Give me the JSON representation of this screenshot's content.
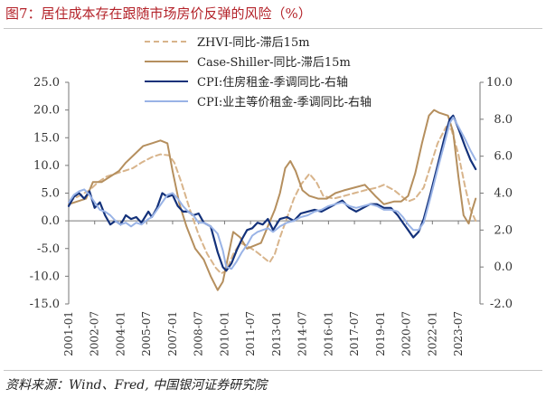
{
  "title": "图7：居住成本存在跟随市场房价反弹的风险（%）",
  "source": "资料来源：Wind、Fred, 中国银河证券研究院",
  "chart_data": {
    "type": "line",
    "x_ticks": [
      "2001-01",
      "2002-07",
      "2004-01",
      "2005-07",
      "2007-01",
      "2008-07",
      "2010-01",
      "2011-07",
      "2013-01",
      "2014-07",
      "2016-01",
      "2017-07",
      "2019-01",
      "2020-07",
      "2022-01",
      "2023-07"
    ],
    "y_left": {
      "ticks": [
        25.0,
        20.0,
        15.0,
        10.0,
        5.0,
        0.0,
        -5.0,
        -10.0,
        -15.0
      ],
      "tick_labels": [
        "25.0",
        "20.0",
        "15.0",
        "10.0",
        "5.0",
        "0.0",
        "-5.0",
        "-10.0",
        "-15.0"
      ],
      "ylim": [
        -15,
        25
      ]
    },
    "y_right": {
      "ticks": [
        10.0,
        8.0,
        6.0,
        4.0,
        2.0,
        0.0,
        -2.0
      ],
      "tick_labels": [
        "10.0",
        "8.0",
        "6.0",
        "4.0",
        "2.0",
        "0.0",
        "-2.0"
      ],
      "ylim": [
        -2,
        10
      ]
    },
    "series": [
      {
        "name": "ZHVI-同比-滞后15m",
        "axis": "left",
        "color": "#d8b48b",
        "dash": true,
        "points": [
          [
            2001.0,
            3.5
          ],
          [
            2001.6,
            4.5
          ],
          [
            2002.2,
            5.5
          ],
          [
            2002.7,
            7.0
          ],
          [
            2003.2,
            8.0
          ],
          [
            2003.7,
            8.5
          ],
          [
            2004.2,
            9.0
          ],
          [
            2004.7,
            9.5
          ],
          [
            2005.2,
            10.5
          ],
          [
            2005.8,
            11.5
          ],
          [
            2006.3,
            12.0
          ],
          [
            2006.8,
            11.8
          ],
          [
            2007.1,
            10.5
          ],
          [
            2007.5,
            7.0
          ],
          [
            2008.0,
            2.0
          ],
          [
            2008.5,
            -2.5
          ],
          [
            2009.0,
            -6.0
          ],
          [
            2009.5,
            -8.5
          ],
          [
            2009.8,
            -9.5
          ],
          [
            2010.1,
            -9.0
          ],
          [
            2010.5,
            -6.0
          ],
          [
            2010.9,
            -4.0
          ],
          [
            2011.3,
            -4.5
          ],
          [
            2011.8,
            -5.5
          ],
          [
            2012.2,
            -6.5
          ],
          [
            2012.6,
            -7.5
          ],
          [
            2012.9,
            -6.0
          ],
          [
            2013.2,
            -3.0
          ],
          [
            2013.6,
            0.5
          ],
          [
            2014.0,
            4.0
          ],
          [
            2014.4,
            6.5
          ],
          [
            2014.9,
            8.5
          ],
          [
            2015.3,
            7.0
          ],
          [
            2015.7,
            4.5
          ],
          [
            2016.3,
            4.0
          ],
          [
            2016.9,
            4.5
          ],
          [
            2017.5,
            5.0
          ],
          [
            2018.1,
            5.5
          ],
          [
            2018.8,
            6.0
          ],
          [
            2019.2,
            6.5
          ],
          [
            2019.8,
            5.5
          ],
          [
            2020.2,
            4.5
          ],
          [
            2020.6,
            3.5
          ],
          [
            2021.0,
            4.0
          ],
          [
            2021.5,
            6.0
          ],
          [
            2021.9,
            10.0
          ],
          [
            2022.3,
            14.0
          ],
          [
            2022.8,
            17.0
          ],
          [
            2023.1,
            16.5
          ],
          [
            2023.5,
            12.0
          ],
          [
            2023.9,
            6.0
          ],
          [
            2024.2,
            2.0
          ],
          [
            2024.5,
            0.0
          ]
        ]
      },
      {
        "name": "Case-Shiller-同比-滞后15m",
        "axis": "left",
        "color": "#b58f5e",
        "dash": false,
        "points": [
          [
            2001.0,
            3.0
          ],
          [
            2001.5,
            3.5
          ],
          [
            2002.0,
            4.0
          ],
          [
            2002.4,
            7.0
          ],
          [
            2002.9,
            7.0
          ],
          [
            2003.4,
            8.0
          ],
          [
            2003.9,
            9.0
          ],
          [
            2004.3,
            10.5
          ],
          [
            2004.8,
            12.0
          ],
          [
            2005.3,
            13.5
          ],
          [
            2005.8,
            14.0
          ],
          [
            2006.3,
            14.5
          ],
          [
            2006.7,
            14.0
          ],
          [
            2007.0,
            9.0
          ],
          [
            2007.4,
            3.0
          ],
          [
            2007.8,
            -1.0
          ],
          [
            2008.3,
            -5.0
          ],
          [
            2008.8,
            -7.0
          ],
          [
            2009.2,
            -10.0
          ],
          [
            2009.6,
            -12.5
          ],
          [
            2009.9,
            -11.0
          ],
          [
            2010.2,
            -6.5
          ],
          [
            2010.5,
            -2.0
          ],
          [
            2010.9,
            -3.0
          ],
          [
            2011.3,
            -5.0
          ],
          [
            2011.7,
            -4.5
          ],
          [
            2012.1,
            -4.0
          ],
          [
            2012.5,
            -1.0
          ],
          [
            2012.9,
            2.0
          ],
          [
            2013.2,
            5.0
          ],
          [
            2013.5,
            9.5
          ],
          [
            2013.8,
            10.8
          ],
          [
            2014.1,
            9.0
          ],
          [
            2014.5,
            5.5
          ],
          [
            2014.9,
            4.5
          ],
          [
            2015.4,
            4.0
          ],
          [
            2015.9,
            4.0
          ],
          [
            2016.4,
            5.0
          ],
          [
            2016.9,
            5.5
          ],
          [
            2017.5,
            6.0
          ],
          [
            2018.1,
            6.5
          ],
          [
            2018.7,
            4.5
          ],
          [
            2019.2,
            3.0
          ],
          [
            2019.8,
            3.5
          ],
          [
            2020.2,
            3.5
          ],
          [
            2020.6,
            4.5
          ],
          [
            2021.0,
            8.5
          ],
          [
            2021.4,
            14.0
          ],
          [
            2021.8,
            19.0
          ],
          [
            2022.1,
            20.0
          ],
          [
            2022.4,
            19.5
          ],
          [
            2022.9,
            19.0
          ],
          [
            2023.2,
            16.0
          ],
          [
            2023.5,
            8.0
          ],
          [
            2023.8,
            1.0
          ],
          [
            2024.1,
            -0.5
          ],
          [
            2024.3,
            2.0
          ],
          [
            2024.5,
            4.0
          ]
        ]
      },
      {
        "name": "CPI:住房租金-季调同比-右轴",
        "axis": "right",
        "color": "#13317a",
        "dash": false,
        "points": [
          [
            2001.0,
            3.3
          ],
          [
            2001.3,
            3.8
          ],
          [
            2001.6,
            4.0
          ],
          [
            2001.9,
            3.7
          ],
          [
            2002.2,
            4.1
          ],
          [
            2002.5,
            3.2
          ],
          [
            2002.8,
            3.5
          ],
          [
            2003.1,
            2.8
          ],
          [
            2003.4,
            2.3
          ],
          [
            2003.7,
            2.5
          ],
          [
            2004.0,
            2.3
          ],
          [
            2004.3,
            2.8
          ],
          [
            2004.6,
            2.6
          ],
          [
            2004.9,
            2.7
          ],
          [
            2005.2,
            2.4
          ],
          [
            2005.6,
            3.0
          ],
          [
            2005.8,
            2.7
          ],
          [
            2006.1,
            3.2
          ],
          [
            2006.4,
            4.0
          ],
          [
            2006.7,
            3.8
          ],
          [
            2007.0,
            3.9
          ],
          [
            2007.3,
            3.3
          ],
          [
            2007.6,
            3.0
          ],
          [
            2007.9,
            3.0
          ],
          [
            2008.2,
            2.8
          ],
          [
            2008.5,
            2.9
          ],
          [
            2008.8,
            2.4
          ],
          [
            2009.2,
            2.2
          ],
          [
            2009.6,
            0.8
          ],
          [
            2009.9,
            0.0
          ],
          [
            2010.1,
            -0.2
          ],
          [
            2010.4,
            0.2
          ],
          [
            2010.7,
            0.9
          ],
          [
            2011.0,
            1.5
          ],
          [
            2011.3,
            2.0
          ],
          [
            2011.6,
            2.1
          ],
          [
            2011.9,
            2.4
          ],
          [
            2012.2,
            2.3
          ],
          [
            2012.5,
            2.6
          ],
          [
            2012.8,
            2.0
          ],
          [
            2013.2,
            2.6
          ],
          [
            2013.6,
            2.7
          ],
          [
            2014.0,
            2.5
          ],
          [
            2014.4,
            2.9
          ],
          [
            2014.8,
            3.0
          ],
          [
            2015.2,
            3.1
          ],
          [
            2015.6,
            3.0
          ],
          [
            2016.0,
            3.2
          ],
          [
            2016.4,
            3.4
          ],
          [
            2016.8,
            3.6
          ],
          [
            2017.2,
            3.2
          ],
          [
            2017.6,
            3.0
          ],
          [
            2018.0,
            3.2
          ],
          [
            2018.4,
            3.4
          ],
          [
            2018.8,
            3.4
          ],
          [
            2019.2,
            3.2
          ],
          [
            2019.6,
            3.2
          ],
          [
            2020.0,
            2.8
          ],
          [
            2020.3,
            2.4
          ],
          [
            2020.6,
            2.0
          ],
          [
            2020.9,
            1.6
          ],
          [
            2021.2,
            1.9
          ],
          [
            2021.5,
            2.6
          ],
          [
            2021.9,
            4.0
          ],
          [
            2022.3,
            5.5
          ],
          [
            2022.7,
            7.0
          ],
          [
            2023.0,
            8.0
          ],
          [
            2023.2,
            8.2
          ],
          [
            2023.5,
            7.5
          ],
          [
            2023.9,
            6.5
          ],
          [
            2024.2,
            5.8
          ],
          [
            2024.5,
            5.3
          ]
        ]
      },
      {
        "name": "CPI:业主等价租金-季调同比-右轴",
        "axis": "right",
        "color": "#99b3e6",
        "dash": false,
        "points": [
          [
            2001.0,
            3.5
          ],
          [
            2001.3,
            3.9
          ],
          [
            2001.6,
            4.1
          ],
          [
            2001.9,
            4.2
          ],
          [
            2002.2,
            3.9
          ],
          [
            2002.5,
            3.5
          ],
          [
            2002.8,
            3.1
          ],
          [
            2003.1,
            3.0
          ],
          [
            2003.4,
            2.8
          ],
          [
            2003.7,
            2.5
          ],
          [
            2004.0,
            2.3
          ],
          [
            2004.3,
            2.4
          ],
          [
            2004.6,
            2.2
          ],
          [
            2004.9,
            2.4
          ],
          [
            2005.2,
            2.3
          ],
          [
            2005.6,
            2.6
          ],
          [
            2005.8,
            2.7
          ],
          [
            2006.1,
            3.1
          ],
          [
            2006.4,
            3.5
          ],
          [
            2006.7,
            3.9
          ],
          [
            2007.0,
            4.0
          ],
          [
            2007.3,
            3.7
          ],
          [
            2007.6,
            3.3
          ],
          [
            2007.9,
            3.0
          ],
          [
            2008.2,
            2.8
          ],
          [
            2008.5,
            2.4
          ],
          [
            2008.8,
            2.4
          ],
          [
            2009.2,
            2.2
          ],
          [
            2009.6,
            1.8
          ],
          [
            2009.9,
            0.9
          ],
          [
            2010.1,
            0.0
          ],
          [
            2010.4,
            -0.1
          ],
          [
            2010.7,
            0.3
          ],
          [
            2011.0,
            0.8
          ],
          [
            2011.3,
            1.2
          ],
          [
            2011.6,
            1.7
          ],
          [
            2011.9,
            1.9
          ],
          [
            2012.2,
            2.0
          ],
          [
            2012.5,
            2.1
          ],
          [
            2012.8,
            1.9
          ],
          [
            2013.2,
            2.2
          ],
          [
            2013.6,
            2.4
          ],
          [
            2014.0,
            2.5
          ],
          [
            2014.4,
            2.7
          ],
          [
            2014.8,
            2.8
          ],
          [
            2015.2,
            3.0
          ],
          [
            2015.6,
            3.1
          ],
          [
            2016.0,
            3.3
          ],
          [
            2016.4,
            3.4
          ],
          [
            2016.8,
            3.5
          ],
          [
            2017.2,
            3.3
          ],
          [
            2017.6,
            3.2
          ],
          [
            2018.0,
            3.3
          ],
          [
            2018.4,
            3.4
          ],
          [
            2018.8,
            3.3
          ],
          [
            2019.2,
            3.1
          ],
          [
            2019.6,
            3.1
          ],
          [
            2020.0,
            3.0
          ],
          [
            2020.3,
            2.7
          ],
          [
            2020.6,
            2.3
          ],
          [
            2020.9,
            2.0
          ],
          [
            2021.2,
            2.0
          ],
          [
            2021.5,
            2.4
          ],
          [
            2021.9,
            3.8
          ],
          [
            2022.3,
            5.3
          ],
          [
            2022.7,
            6.7
          ],
          [
            2023.0,
            7.8
          ],
          [
            2023.2,
            8.1
          ],
          [
            2023.5,
            7.6
          ],
          [
            2023.9,
            6.9
          ],
          [
            2024.2,
            6.3
          ],
          [
            2024.5,
            5.8
          ]
        ]
      }
    ],
    "legend_position": "top-right",
    "grid": false
  }
}
